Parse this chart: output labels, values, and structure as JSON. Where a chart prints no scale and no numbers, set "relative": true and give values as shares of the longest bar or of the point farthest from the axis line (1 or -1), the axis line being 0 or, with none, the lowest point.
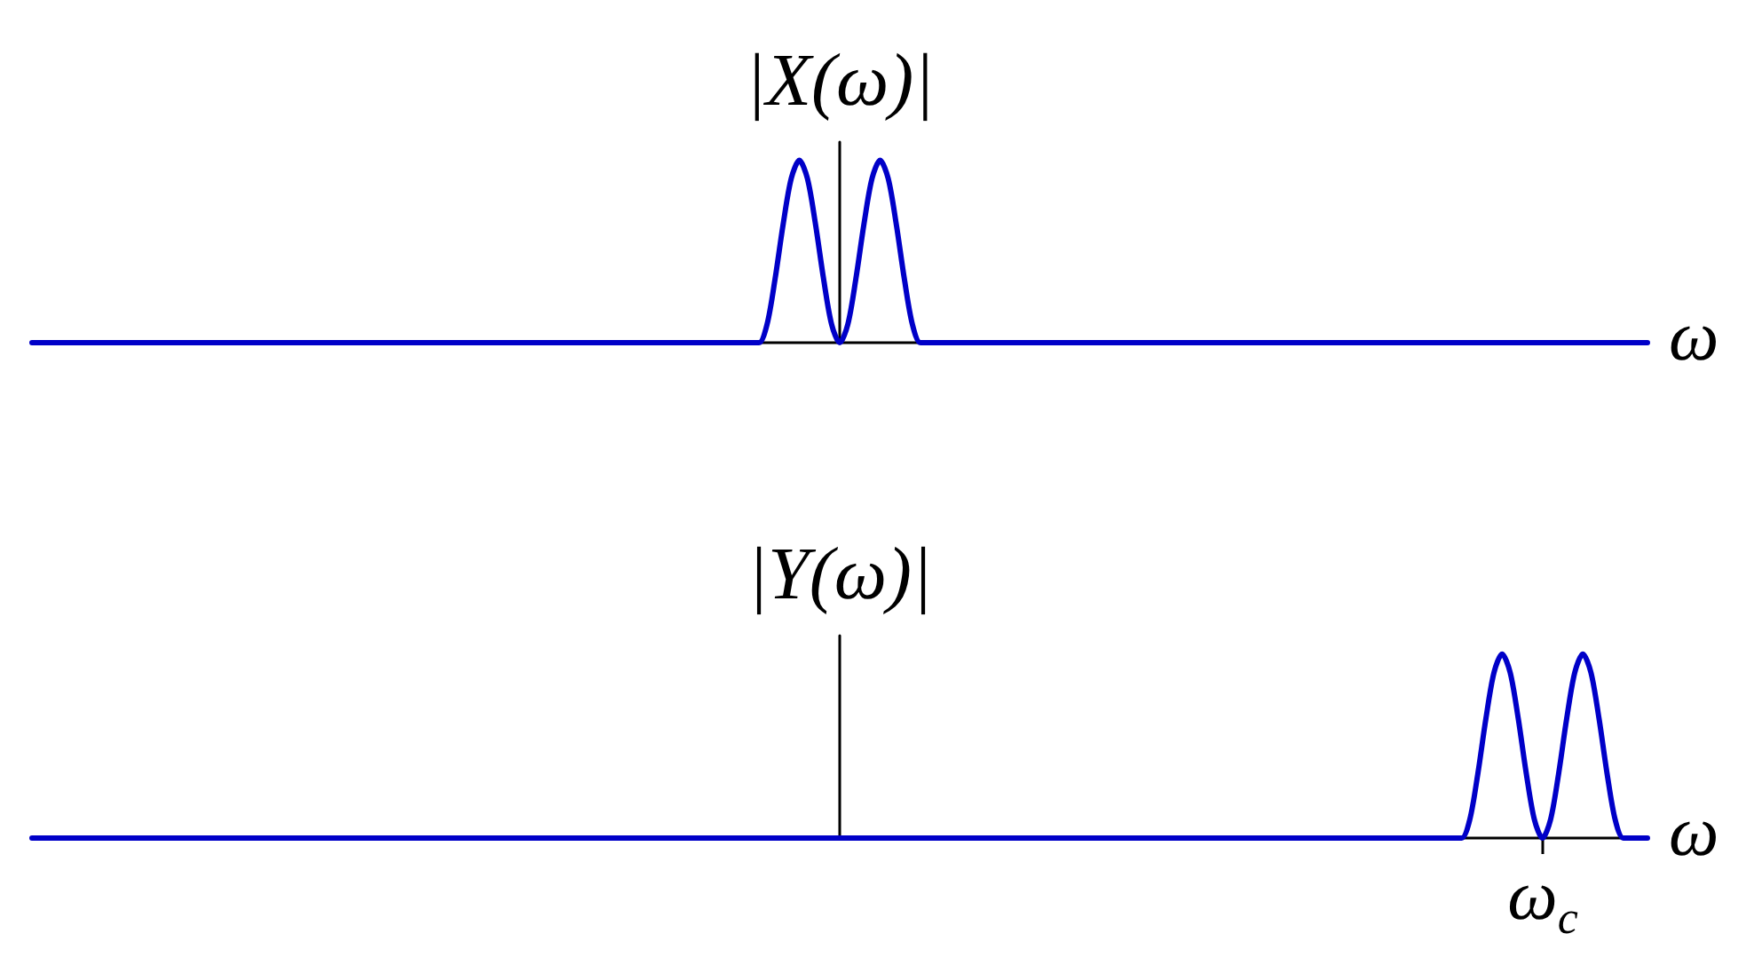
{
  "chart_data": [
    {
      "type": "line",
      "ylabel": "|X(ω)|",
      "xlabel": "ω",
      "relative": true,
      "marker": "none",
      "line_style": "solid",
      "color": "#0000c8",
      "categories": [
        null,
        null,
        null,
        null,
        null,
        null,
        null,
        null,
        null,
        null,
        null,
        null,
        null,
        null,
        null,
        null,
        null,
        null,
        null,
        null,
        null,
        null,
        null,
        null,
        null,
        null,
        null,
        null,
        null,
        null,
        null,
        null,
        null,
        null,
        null,
        null,
        null,
        null,
        null,
        null,
        null,
        null,
        null,
        null,
        null,
        null,
        null,
        null,
        null,
        null,
        null,
        null,
        null,
        null,
        null,
        null,
        null,
        null,
        null,
        null,
        null,
        null,
        null,
        null,
        null,
        null,
        null,
        null,
        null,
        null,
        null,
        null,
        null,
        null,
        null,
        null,
        null,
        null,
        null,
        null,
        null,
        null,
        null,
        null,
        null,
        null,
        null,
        null,
        null,
        null,
        null,
        null,
        null,
        null,
        null,
        null,
        null,
        null,
        null,
        null,
        null,
        null,
        null,
        null,
        null,
        null,
        null,
        null,
        null,
        null,
        null,
        null,
        null,
        null,
        null,
        null,
        null,
        null,
        null,
        null,
        null,
        null,
        null,
        null,
        null,
        null,
        null,
        null,
        null,
        null,
        null,
        null,
        null,
        null,
        null,
        null,
        null,
        null,
        null,
        null,
        null,
        null,
        null,
        null,
        null,
        null,
        null,
        null,
        null,
        null,
        null,
        null,
        null,
        null,
        null,
        null,
        null,
        null,
        null,
        null,
        null,
        null,
        null,
        null,
        null,
        null,
        null,
        null,
        null,
        null,
        null,
        null,
        null,
        null,
        null,
        null,
        null,
        null,
        null,
        null,
        null,
        null,
        null,
        null,
        null,
        null,
        null,
        null,
        null,
        null,
        null,
        null,
        null,
        null,
        null,
        null,
        null,
        null,
        null,
        null,
        null
      ],
      "values": [
        0,
        0,
        0,
        0,
        0,
        0,
        0,
        0,
        0,
        0,
        0,
        0,
        0,
        0,
        0,
        0,
        0,
        0,
        0,
        0,
        0,
        0,
        0,
        0,
        0,
        0,
        0,
        0,
        0,
        0,
        0,
        0,
        0,
        0,
        0,
        0,
        0,
        0,
        0,
        0,
        0,
        0,
        0,
        0,
        0,
        0,
        0,
        0,
        0,
        0,
        0,
        0,
        0,
        0,
        0,
        0,
        0,
        0,
        0,
        0,
        0,
        0,
        0,
        0,
        0,
        0,
        0,
        0,
        0,
        0,
        0,
        0,
        0,
        0,
        0,
        0,
        0,
        0,
        0,
        0,
        0,
        0,
        0,
        0,
        0,
        0,
        0,
        0,
        0,
        0,
        0,
        0.1,
        0.35,
        0.65,
        0.9,
        1,
        0.9,
        0.65,
        0.35,
        0.1,
        0,
        0.1,
        0.35,
        0.65,
        0.9,
        1,
        0.9,
        0.65,
        0.35,
        0.1,
        0,
        0,
        0,
        0,
        0,
        0,
        0,
        0,
        0,
        0,
        0,
        0,
        0,
        0,
        0,
        0,
        0,
        0,
        0,
        0,
        0,
        0,
        0,
        0,
        0,
        0,
        0,
        0,
        0,
        0,
        0,
        0,
        0,
        0,
        0,
        0,
        0,
        0,
        0,
        0,
        0,
        0,
        0,
        0,
        0,
        0,
        0,
        0,
        0,
        0,
        0,
        0,
        0,
        0,
        0,
        0,
        0,
        0,
        0,
        0,
        0,
        0,
        0,
        0,
        0,
        0,
        0,
        0,
        0,
        0,
        0,
        0,
        0,
        0,
        0,
        0,
        0,
        0,
        0,
        0,
        0,
        0,
        0,
        0,
        0,
        0,
        0,
        0,
        0,
        0,
        0
      ]
    },
    {
      "type": "line",
      "ylabel": "|Y(ω)|",
      "xlabel": "ω",
      "relative": true,
      "marker": "none",
      "line_style": "solid",
      "color": "#0000c8",
      "annotations": [
        "ω$_{c}$"
      ],
      "categories": [
        null,
        null,
        null,
        null,
        null,
        null,
        null,
        null,
        null,
        null,
        null,
        null,
        null,
        null,
        null,
        null,
        null,
        null,
        null,
        null,
        null,
        null,
        null,
        null,
        null,
        null,
        null,
        null,
        null,
        null,
        null,
        null,
        null,
        null,
        null,
        null,
        null,
        null,
        null,
        null,
        null,
        null,
        null,
        null,
        null,
        null,
        null,
        null,
        null,
        null,
        null,
        null,
        null,
        null,
        null,
        null,
        null,
        null,
        null,
        null,
        null,
        null,
        null,
        null,
        null,
        null,
        null,
        null,
        null,
        null,
        null,
        null,
        null,
        null,
        null,
        null,
        null,
        null,
        null,
        null,
        null,
        null,
        null,
        null,
        null,
        null,
        null,
        null,
        null,
        null,
        null,
        null,
        null,
        null,
        null,
        null,
        null,
        null,
        null,
        null,
        null,
        null,
        null,
        null,
        null,
        null,
        null,
        null,
        null,
        null,
        null,
        null,
        null,
        null,
        null,
        null,
        null,
        null,
        null,
        null,
        null,
        null,
        null,
        null,
        null,
        null,
        null,
        null,
        null,
        null,
        null,
        null,
        null,
        null,
        null,
        null,
        null,
        null,
        null,
        null,
        null,
        null,
        null,
        null,
        null,
        null,
        null,
        null,
        null,
        null,
        null,
        null,
        null,
        null,
        null,
        null,
        null,
        null,
        null,
        null,
        null,
        null,
        null,
        null,
        null,
        null,
        null,
        null,
        null,
        null,
        null,
        null,
        null,
        null,
        null,
        null,
        null,
        null,
        null,
        null,
        null,
        null,
        null,
        null,
        null,
        null,
        null,
        null,
        null,
        null,
        null,
        null,
        null,
        null,
        null,
        null,
        null,
        null,
        null,
        null,
        null
      ],
      "values": [
        0,
        0,
        0,
        0,
        0,
        0,
        0,
        0,
        0,
        0,
        0,
        0,
        0,
        0,
        0,
        0,
        0,
        0,
        0,
        0,
        0,
        0,
        0,
        0,
        0,
        0,
        0,
        0,
        0,
        0,
        0,
        0,
        0,
        0,
        0,
        0,
        0,
        0,
        0,
        0,
        0,
        0,
        0,
        0,
        0,
        0,
        0,
        0,
        0,
        0,
        0,
        0,
        0,
        0,
        0,
        0,
        0,
        0,
        0,
        0,
        0,
        0,
        0,
        0,
        0,
        0,
        0,
        0,
        0,
        0,
        0,
        0,
        0,
        0,
        0,
        0,
        0,
        0,
        0,
        0,
        0,
        0,
        0,
        0,
        0,
        0,
        0,
        0,
        0,
        0,
        0,
        0,
        0,
        0,
        0,
        0,
        0,
        0,
        0,
        0,
        0,
        0,
        0,
        0,
        0,
        0,
        0,
        0,
        0,
        0,
        0,
        0,
        0,
        0,
        0,
        0,
        0,
        0,
        0,
        0,
        0,
        0,
        0,
        0,
        0,
        0,
        0,
        0,
        0,
        0,
        0,
        0,
        0,
        0,
        0,
        0,
        0,
        0,
        0,
        0,
        0,
        0,
        0,
        0,
        0,
        0,
        0,
        0,
        0,
        0,
        0,
        0,
        0,
        0,
        0,
        0,
        0,
        0,
        0,
        0,
        0,
        0,
        0,
        0,
        0,
        0,
        0,
        0,
        0,
        0,
        0,
        0,
        0,
        0,
        0,
        0,
        0,
        0,
        0.1,
        0.35,
        0.65,
        0.9,
        1,
        0.9,
        0.65,
        0.35,
        0.1,
        0,
        0.1,
        0.35,
        0.65,
        0.9,
        1,
        0.9,
        0.65,
        0.35,
        0.1,
        0,
        0,
        0,
        0
      ]
    }
  ]
}
